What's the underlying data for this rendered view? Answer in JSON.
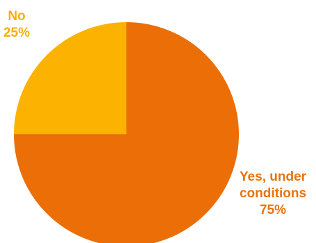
{
  "chart_data": {
    "type": "pie",
    "slices": [
      {
        "name": "No",
        "value": 25,
        "value_label": "25%",
        "color": "#FBB201"
      },
      {
        "name": "Yes, under conditions",
        "value": 75,
        "value_label": "75%",
        "color": "#EB6E07"
      }
    ],
    "start_angle": "top",
    "direction": "counter-clockwise from top for 'No'",
    "legend": "none"
  },
  "labels": {
    "no": {
      "name": "No",
      "value": "25%"
    },
    "yes": {
      "name_line1": "Yes, under",
      "name_line2": "conditions",
      "value": "75%"
    }
  }
}
